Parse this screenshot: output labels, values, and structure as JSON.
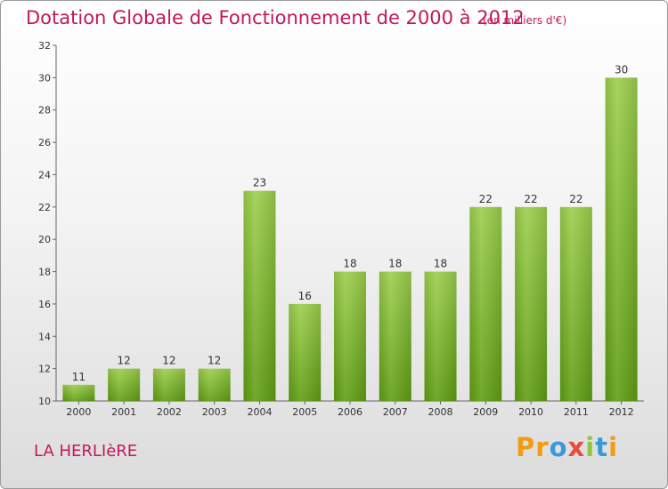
{
  "title": "Dotation Globale de Fonctionnement de 2000 à 2012",
  "subtitle": "(en milliers d'€)",
  "commune": "LA HERLIèRE",
  "logo": {
    "text": "Proxiti",
    "letters": [
      {
        "ch": "P",
        "color": "#f39c12"
      },
      {
        "ch": "r",
        "color": "#f39c12"
      },
      {
        "ch": "o",
        "color": "#3a9ad9"
      },
      {
        "ch": "x",
        "color": "#e74c3c"
      },
      {
        "ch": "i",
        "color": "#8dc63f"
      },
      {
        "ch": "t",
        "color": "#3a9ad9"
      },
      {
        "ch": "i",
        "color": "#f39c12"
      }
    ]
  },
  "chart_data": {
    "type": "bar",
    "title": "Dotation Globale de Fonctionnement de 2000 à 2012",
    "subtitle": "(en milliers d'€)",
    "xlabel": "",
    "ylabel": "",
    "categories": [
      "2000",
      "2001",
      "2002",
      "2003",
      "2004",
      "2005",
      "2006",
      "2007",
      "2008",
      "2009",
      "2010",
      "2011",
      "2012"
    ],
    "values": [
      11,
      12,
      12,
      12,
      23,
      16,
      18,
      18,
      18,
      22,
      22,
      22,
      30
    ],
    "ylim": [
      10,
      32
    ],
    "yticks": [
      10,
      12,
      14,
      16,
      18,
      20,
      22,
      24,
      26,
      28,
      30,
      32
    ],
    "grid": false,
    "bar_color_top": "#9ccf4c",
    "bar_color_bottom": "#5f9e12"
  }
}
